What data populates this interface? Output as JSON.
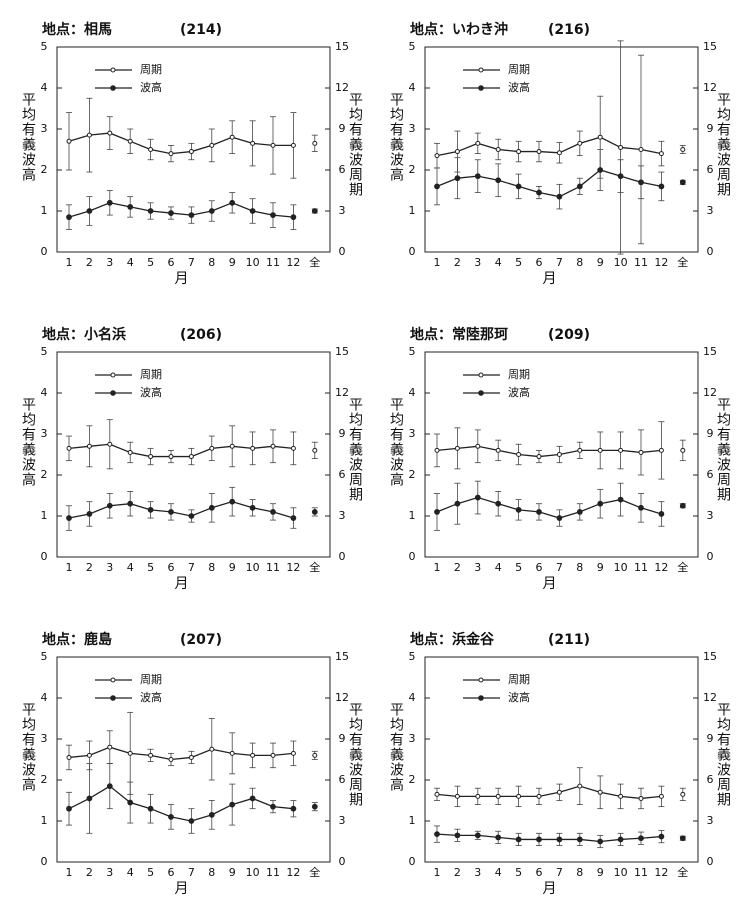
{
  "chart_data": [
    {
      "type": "line",
      "title": "地点：相馬",
      "subtitle": "(214)",
      "xlabel": "月",
      "ylabel": "平均有義波高",
      "y2label": "平均有義波周期",
      "categories": [
        "1",
        "2",
        "3",
        "4",
        "5",
        "6",
        "7",
        "8",
        "9",
        "10",
        "11",
        "12"
      ],
      "annual_label": "全",
      "ylim": [
        0,
        5
      ],
      "yticks": [
        0,
        1,
        2,
        3,
        4,
        5
      ],
      "y2lim": [
        0,
        15
      ],
      "y2ticks": [
        0,
        3,
        6,
        9,
        12,
        15
      ],
      "series": [
        {
          "name": "周期",
          "axis": "y2",
          "marker": "open",
          "color": "#222",
          "values": [
            8.1,
            8.55,
            8.7,
            8.1,
            7.5,
            7.2,
            7.35,
            7.8,
            8.4,
            7.95,
            7.8,
            7.8
          ],
          "errors": [
            2.1,
            2.7,
            1.2,
            0.9,
            0.75,
            0.6,
            0.6,
            1.2,
            1.2,
            1.65,
            2.1,
            2.4
          ],
          "annual": 7.95,
          "annual_error": 0.6
        },
        {
          "name": "波高",
          "axis": "y",
          "marker": "filled",
          "color": "#222",
          "values": [
            0.85,
            1.0,
            1.2,
            1.1,
            1.0,
            0.95,
            0.9,
            1.0,
            1.2,
            1.0,
            0.9,
            0.85
          ],
          "errors": [
            0.3,
            0.35,
            0.3,
            0.25,
            0.2,
            0.15,
            0.2,
            0.25,
            0.25,
            0.3,
            0.3,
            0.3
          ],
          "annual": 1.0,
          "annual_error": 0.05
        }
      ]
    },
    {
      "type": "line",
      "title": "地点：いわき沖",
      "subtitle": "(216)",
      "xlabel": "月",
      "ylabel": "平均有義波高",
      "y2label": "平均有義波周期",
      "categories": [
        "1",
        "2",
        "3",
        "4",
        "5",
        "6",
        "7",
        "8",
        "9",
        "10",
        "11",
        "12"
      ],
      "annual_label": "全",
      "ylim": [
        0,
        5
      ],
      "yticks": [
        0,
        1,
        2,
        3,
        4,
        5
      ],
      "y2lim": [
        0,
        15
      ],
      "y2ticks": [
        0,
        3,
        6,
        9,
        12,
        15
      ],
      "series": [
        {
          "name": "周期",
          "axis": "y2",
          "marker": "open",
          "color": "#222",
          "values": [
            7.05,
            7.35,
            7.95,
            7.5,
            7.35,
            7.35,
            7.26,
            7.95,
            8.4,
            7.65,
            7.5,
            7.2
          ],
          "errors": [
            0.9,
            1.5,
            0.75,
            0.75,
            0.75,
            0.75,
            0.75,
            0.9,
            3.0,
            7.8,
            6.9,
            0.9
          ],
          "annual": 7.5,
          "annual_error": 0.3
        },
        {
          "name": "波高",
          "axis": "y",
          "marker": "filled",
          "color": "#222",
          "values": [
            1.6,
            1.8,
            1.85,
            1.75,
            1.6,
            1.45,
            1.35,
            1.6,
            2.0,
            1.85,
            1.7,
            1.6
          ],
          "errors": [
            0.45,
            0.5,
            0.4,
            0.4,
            0.3,
            0.15,
            0.3,
            0.2,
            0.5,
            0.4,
            0.4,
            0.35
          ],
          "annual": 1.7,
          "annual_error": 0.05
        }
      ]
    },
    {
      "type": "line",
      "title": "地点：小名浜",
      "subtitle": "(206)",
      "xlabel": "月",
      "ylabel": "平均有義波高",
      "y2label": "平均有義波周期",
      "categories": [
        "1",
        "2",
        "3",
        "4",
        "5",
        "6",
        "7",
        "8",
        "9",
        "10",
        "11",
        "12"
      ],
      "annual_label": "全",
      "ylim": [
        0,
        5
      ],
      "yticks": [
        0,
        1,
        2,
        3,
        4,
        5
      ],
      "y2lim": [
        0,
        15
      ],
      "y2ticks": [
        0,
        3,
        6,
        9,
        12,
        15
      ],
      "series": [
        {
          "name": "周期",
          "axis": "y2",
          "marker": "open",
          "color": "#222",
          "values": [
            7.95,
            8.1,
            8.25,
            7.65,
            7.35,
            7.35,
            7.35,
            7.95,
            8.1,
            7.95,
            8.1,
            7.95
          ],
          "errors": [
            0.9,
            1.5,
            1.8,
            0.75,
            0.6,
            0.45,
            0.6,
            0.9,
            1.5,
            1.2,
            1.2,
            1.2
          ],
          "annual": 7.8,
          "annual_error": 0.6
        },
        {
          "name": "波高",
          "axis": "y",
          "marker": "filled",
          "color": "#222",
          "values": [
            0.95,
            1.05,
            1.25,
            1.3,
            1.15,
            1.1,
            1.0,
            1.2,
            1.35,
            1.2,
            1.1,
            0.95
          ],
          "errors": [
            0.3,
            0.3,
            0.3,
            0.3,
            0.2,
            0.2,
            0.15,
            0.35,
            0.35,
            0.2,
            0.2,
            0.25
          ],
          "annual": 1.1,
          "annual_error": 0.1
        }
      ]
    },
    {
      "type": "line",
      "title": "地点：常陸那珂",
      "subtitle": "(209)",
      "xlabel": "月",
      "ylabel": "平均有義波高",
      "y2label": "平均有義波周期",
      "categories": [
        "1",
        "2",
        "3",
        "4",
        "5",
        "6",
        "7",
        "8",
        "9",
        "10",
        "11",
        "12"
      ],
      "annual_label": "全",
      "ylim": [
        0,
        5
      ],
      "yticks": [
        0,
        1,
        2,
        3,
        4,
        5
      ],
      "y2lim": [
        0,
        15
      ],
      "y2ticks": [
        0,
        3,
        6,
        9,
        12,
        15
      ],
      "series": [
        {
          "name": "周期",
          "axis": "y2",
          "marker": "open",
          "color": "#222",
          "values": [
            7.8,
            7.95,
            8.1,
            7.8,
            7.5,
            7.35,
            7.5,
            7.8,
            7.8,
            7.8,
            7.65,
            7.8
          ],
          "errors": [
            1.2,
            1.5,
            1.2,
            0.75,
            0.75,
            0.45,
            0.6,
            0.6,
            1.35,
            1.35,
            1.65,
            2.1
          ],
          "annual": 7.8,
          "annual_error": 0.75
        },
        {
          "name": "波高",
          "axis": "y",
          "marker": "filled",
          "color": "#222",
          "values": [
            1.1,
            1.3,
            1.45,
            1.3,
            1.15,
            1.1,
            0.95,
            1.1,
            1.3,
            1.4,
            1.2,
            1.05
          ],
          "errors": [
            0.45,
            0.5,
            0.4,
            0.3,
            0.25,
            0.2,
            0.2,
            0.2,
            0.35,
            0.4,
            0.35,
            0.3
          ],
          "annual": 1.25,
          "annual_error": 0.05
        }
      ]
    },
    {
      "type": "line",
      "title": "地点：鹿島",
      "subtitle": "(207)",
      "xlabel": "月",
      "ylabel": "平均有義波高",
      "y2label": "平均有義波周期",
      "categories": [
        "1",
        "2",
        "3",
        "4",
        "5",
        "6",
        "7",
        "8",
        "9",
        "10",
        "11",
        "12"
      ],
      "annual_label": "全",
      "ylim": [
        0,
        5
      ],
      "yticks": [
        0,
        1,
        2,
        3,
        4,
        5
      ],
      "y2lim": [
        0,
        15
      ],
      "y2ticks": [
        0,
        3,
        6,
        9,
        12,
        15
      ],
      "series": [
        {
          "name": "周期",
          "axis": "y2",
          "marker": "open",
          "color": "#222",
          "values": [
            7.65,
            7.8,
            8.4,
            7.95,
            7.8,
            7.5,
            7.65,
            8.25,
            7.95,
            7.8,
            7.8,
            7.95
          ],
          "errors": [
            0.9,
            1.05,
            1.2,
            3.0,
            0.45,
            0.45,
            0.45,
            2.25,
            1.5,
            0.9,
            0.9,
            0.9
          ],
          "annual": 7.8,
          "annual_error": 0.3
        },
        {
          "name": "波高",
          "axis": "y",
          "marker": "filled",
          "color": "#222",
          "values": [
            1.3,
            1.55,
            1.85,
            1.45,
            1.3,
            1.1,
            1.0,
            1.15,
            1.4,
            1.55,
            1.35,
            1.3
          ],
          "errors": [
            0.4,
            0.85,
            0.55,
            0.5,
            0.35,
            0.3,
            0.3,
            0.35,
            0.5,
            0.25,
            0.15,
            0.2
          ],
          "annual": 1.35,
          "annual_error": 0.1
        }
      ]
    },
    {
      "type": "line",
      "title": "地点：浜金谷",
      "subtitle": "(211)",
      "xlabel": "月",
      "ylabel": "平均有義波高",
      "y2label": "平均有義波周期",
      "categories": [
        "1",
        "2",
        "3",
        "4",
        "5",
        "6",
        "7",
        "8",
        "9",
        "10",
        "11",
        "12"
      ],
      "annual_label": "全",
      "ylim": [
        0,
        5
      ],
      "yticks": [
        0,
        1,
        2,
        3,
        4,
        5
      ],
      "y2lim": [
        0,
        15
      ],
      "y2ticks": [
        0,
        3,
        6,
        9,
        12,
        15
      ],
      "series": [
        {
          "name": "周期",
          "axis": "y2",
          "marker": "open",
          "color": "#222",
          "values": [
            4.95,
            4.8,
            4.8,
            4.8,
            4.8,
            4.8,
            5.1,
            5.55,
            5.1,
            4.8,
            4.65,
            4.8
          ],
          "errors": [
            0.45,
            0.75,
            0.6,
            0.6,
            0.75,
            0.6,
            0.6,
            1.35,
            1.2,
            0.9,
            0.75,
            0.75
          ],
          "annual": 4.95,
          "annual_error": 0.45
        },
        {
          "name": "波高",
          "axis": "y",
          "marker": "filled",
          "color": "#222",
          "values": [
            0.68,
            0.65,
            0.65,
            0.6,
            0.55,
            0.55,
            0.55,
            0.55,
            0.5,
            0.55,
            0.58,
            0.62
          ],
          "errors": [
            0.2,
            0.15,
            0.1,
            0.15,
            0.15,
            0.15,
            0.15,
            0.15,
            0.15,
            0.15,
            0.15,
            0.15
          ],
          "annual": 0.58,
          "annual_error": 0.05
        }
      ]
    }
  ]
}
